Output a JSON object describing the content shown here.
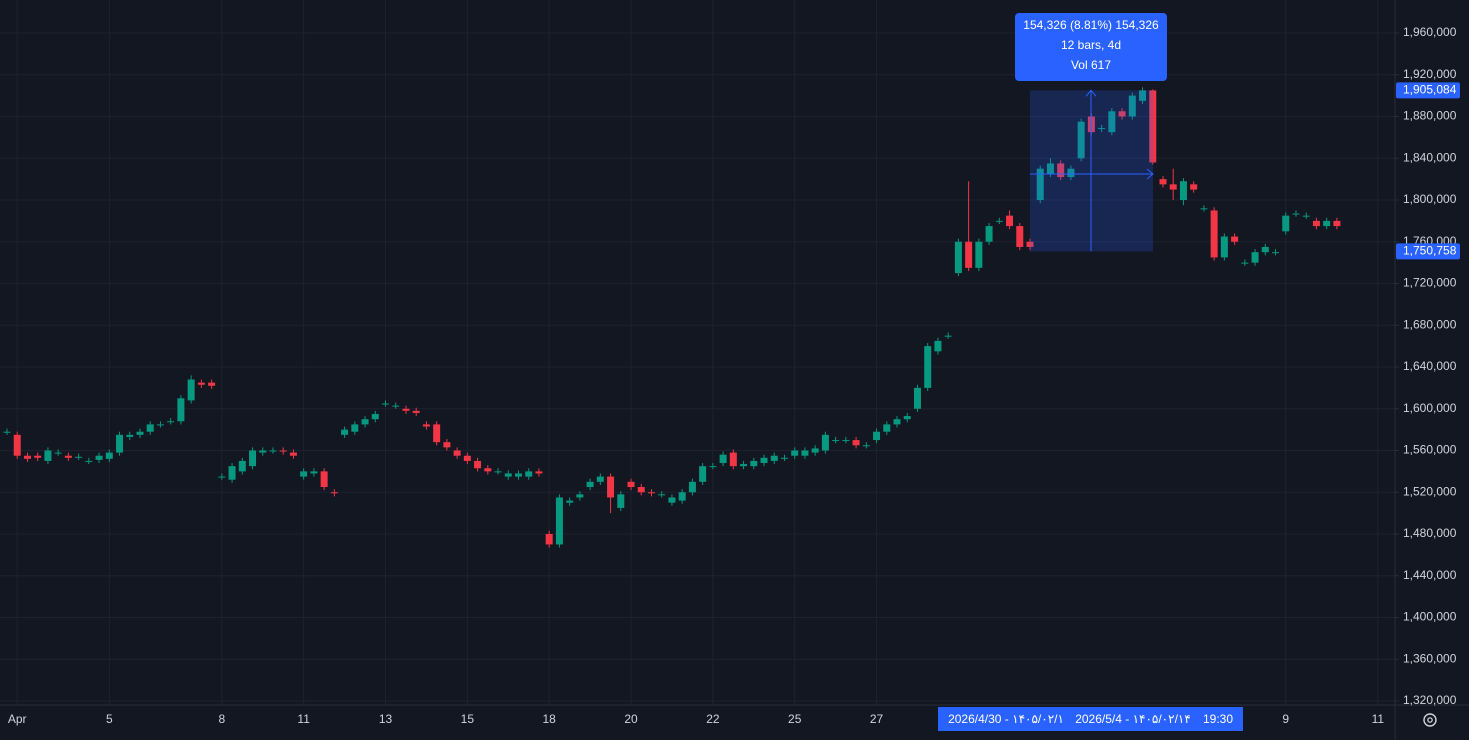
{
  "chart_data": {
    "type": "candlestick",
    "categories": [
      null,
      "Apr",
      null,
      null,
      null,
      null,
      null,
      null,
      null,
      null,
      "5",
      null,
      null,
      null,
      null,
      null,
      null,
      null,
      null,
      null,
      null,
      "8",
      null,
      null,
      null,
      null,
      null,
      null,
      null,
      "11",
      null,
      null,
      null,
      null,
      null,
      null,
      null,
      "13",
      null,
      null,
      null,
      null,
      null,
      null,
      null,
      "15",
      null,
      null,
      null,
      null,
      null,
      null,
      null,
      "18",
      null,
      null,
      null,
      null,
      null,
      null,
      null,
      "20",
      null,
      null,
      null,
      null,
      null,
      null,
      null,
      "22",
      null,
      null,
      null,
      null,
      null,
      null,
      null,
      "25",
      null,
      null,
      null,
      null,
      null,
      null,
      null,
      "27",
      null,
      null,
      null,
      null,
      null,
      null,
      null,
      null,
      null,
      null,
      null,
      null,
      null,
      null,
      null,
      null,
      null,
      null,
      null,
      null,
      null,
      null,
      null,
      null,
      null,
      null,
      null,
      null,
      null,
      null,
      null,
      null,
      null,
      null,
      null,
      null,
      null,
      null,
      null,
      "9",
      null,
      null,
      null,
      null,
      null,
      null,
      null,
      null,
      "11"
    ],
    "open": [
      1578000,
      1575000,
      1555000,
      1555000,
      1550000,
      1558000,
      1555000,
      1554000,
      1550000,
      1551000,
      1552000,
      1558000,
      1573000,
      1575000,
      1578000,
      1585000,
      1588000,
      1588000,
      1608000,
      1625000,
      1625000,
      1535000,
      1532000,
      1540000,
      1545000,
      1558000,
      1560000,
      1560000,
      1558000,
      1535000,
      1538000,
      1540000,
      1520000,
      1575000,
      1578000,
      1585000,
      1590000,
      1605000,
      1603000,
      1600000,
      1598000,
      1585000,
      1585000,
      1568000,
      1560000,
      1555000,
      1550000,
      1543000,
      1540000,
      1535000,
      1535000,
      1535000,
      1540000,
      1480000,
      1470000,
      1510000,
      1515000,
      1525000,
      1530000,
      1535000,
      1505000,
      1530000,
      1525000,
      1520000,
      1518000,
      1510000,
      1512000,
      1520000,
      1530000,
      1545000,
      1548000,
      1558000,
      1545000,
      1545000,
      1548000,
      1550000,
      1553000,
      1555000,
      1555000,
      1558000,
      1560000,
      1570000,
      1570000,
      1570000,
      1565000,
      1570000,
      1578000,
      1585000,
      1590000,
      1600000,
      1620000,
      1655000,
      1670000,
      1730000,
      1760000,
      1735000,
      1760000,
      1780000,
      1785000,
      1775000,
      1760000,
      1800000,
      1825000,
      1835000,
      1822000,
      1840000,
      1880000,
      1868000,
      1865000,
      1885000,
      1880000,
      1895000,
      1905000,
      1820000,
      1815000,
      1800000,
      1815000,
      1792000,
      1790000,
      1745000,
      1765000,
      1740000,
      1740000,
      1750000,
      1750000,
      1770000,
      1787000,
      1785000,
      1780000,
      1775000,
      1780000,
      null,
      null,
      null,
      null
    ],
    "high": [
      1581000,
      1578000,
      1558000,
      1558000,
      1563000,
      1561000,
      1558000,
      1557000,
      1553000,
      1558000,
      1561000,
      1578000,
      1578000,
      1581000,
      1588000,
      1588000,
      1591000,
      1613000,
      1632000,
      1628000,
      1628000,
      1538000,
      1548000,
      1553000,
      1563000,
      1563000,
      1563000,
      1563000,
      1561000,
      1543000,
      1543000,
      1543000,
      1523000,
      1583000,
      1588000,
      1593000,
      1598000,
      1608000,
      1606000,
      1603000,
      1601000,
      1588000,
      1588000,
      1571000,
      1563000,
      1558000,
      1553000,
      1546000,
      1543000,
      1541000,
      1541000,
      1543000,
      1543000,
      1483000,
      1518000,
      1515000,
      1521000,
      1533000,
      1538000,
      1538000,
      1521000,
      1533000,
      1528000,
      1523000,
      1521000,
      1518000,
      1523000,
      1533000,
      1548000,
      1548000,
      1559000,
      1561000,
      1550000,
      1553000,
      1556000,
      1558000,
      1556000,
      1563000,
      1563000,
      1565000,
      1578000,
      1573000,
      1573000,
      1573000,
      1568000,
      1581000,
      1588000,
      1593000,
      1596000,
      1623000,
      1663000,
      1668000,
      1673000,
      1763000,
      1818000,
      1763000,
      1778000,
      1783000,
      1790000,
      1778000,
      1763000,
      1833000,
      1840000,
      1838000,
      1833000,
      1878000,
      1883000,
      1872000,
      1888000,
      1888000,
      1903000,
      1908000,
      1906000,
      1823000,
      1830000,
      1821000,
      1818000,
      1795000,
      1793000,
      1768000,
      1768000,
      1743000,
      1753000,
      1758000,
      1753000,
      1788000,
      1790000,
      1788000,
      1783000,
      1783000,
      1783000,
      null,
      null,
      null,
      null
    ],
    "low": [
      1575000,
      1552000,
      1549000,
      1550000,
      1547000,
      1555000,
      1550000,
      1551000,
      1547000,
      1548000,
      1549000,
      1555000,
      1570000,
      1572000,
      1575000,
      1582000,
      1585000,
      1585000,
      1605000,
      1620000,
      1619000,
      1532000,
      1529000,
      1537000,
      1542000,
      1555000,
      1557000,
      1556000,
      1552000,
      1532000,
      1535000,
      1522000,
      1516000,
      1572000,
      1575000,
      1582000,
      1587000,
      1602000,
      1600000,
      1595000,
      1593000,
      1580000,
      1565000,
      1560000,
      1552000,
      1547000,
      1540000,
      1537000,
      1537000,
      1532000,
      1532000,
      1532000,
      1535000,
      1467000,
      1467000,
      1507000,
      1512000,
      1522000,
      1527000,
      1500000,
      1502000,
      1522000,
      1517000,
      1516000,
      1515000,
      1507000,
      1509000,
      1517000,
      1527000,
      1542000,
      1545000,
      1542000,
      1542000,
      1542000,
      1545000,
      1547000,
      1550000,
      1552000,
      1552000,
      1555000,
      1557000,
      1567000,
      1567000,
      1562000,
      1562000,
      1567000,
      1575000,
      1582000,
      1587000,
      1597000,
      1617000,
      1652000,
      1667000,
      1727000,
      1732000,
      1732000,
      1757000,
      1777000,
      1772000,
      1752000,
      1752000,
      1797000,
      1822000,
      1819000,
      1819000,
      1837000,
      1862000,
      1865000,
      1862000,
      1877000,
      1877000,
      1892000,
      1834000,
      1812000,
      1800000,
      1795000,
      1807000,
      1789000,
      1742000,
      1742000,
      1757000,
      1737000,
      1737000,
      1747000,
      1747000,
      1767000,
      1784000,
      1782000,
      1772000,
      1772000,
      1772000,
      null,
      null,
      null,
      null
    ],
    "close": [
      1578000,
      1555000,
      1552000,
      1553000,
      1560000,
      1558000,
      1553000,
      1554000,
      1550000,
      1555000,
      1558000,
      1575000,
      1575000,
      1578000,
      1585000,
      1585000,
      1588000,
      1610000,
      1628000,
      1623000,
      1622000,
      1535000,
      1545000,
      1550000,
      1560000,
      1560000,
      1560000,
      1559000,
      1555000,
      1540000,
      1540000,
      1525000,
      1519000,
      1580000,
      1585000,
      1590000,
      1595000,
      1605000,
      1603000,
      1598000,
      1596000,
      1583000,
      1568000,
      1563000,
      1555000,
      1550000,
      1543000,
      1540000,
      1540000,
      1538000,
      1538000,
      1540000,
      1538000,
      1470000,
      1515000,
      1512000,
      1518000,
      1530000,
      1535000,
      1515000,
      1518000,
      1525000,
      1520000,
      1519000,
      1518000,
      1515000,
      1520000,
      1530000,
      1545000,
      1545000,
      1556000,
      1545000,
      1547000,
      1550000,
      1553000,
      1555000,
      1553000,
      1560000,
      1560000,
      1562000,
      1575000,
      1570000,
      1570000,
      1565000,
      1565000,
      1578000,
      1585000,
      1590000,
      1593000,
      1620000,
      1660000,
      1665000,
      1670000,
      1760000,
      1735000,
      1760000,
      1775000,
      1780000,
      1775000,
      1755000,
      1755000,
      1830000,
      1835000,
      1822000,
      1830000,
      1875000,
      1865000,
      1869000,
      1885000,
      1880000,
      1900000,
      1905000,
      1836000,
      1815000,
      1810000,
      1818000,
      1810000,
      1792000,
      1745000,
      1765000,
      1760000,
      1740000,
      1750000,
      1755000,
      1750000,
      1785000,
      1787000,
      1785000,
      1775000,
      1780000,
      1775000,
      null,
      null,
      null,
      null
    ],
    "up_color": "#089981",
    "down_color": "#f23645",
    "ylim": [
      1320000,
      1960000
    ],
    "yticks": [
      {
        "value": 1320000,
        "label": "1,320,000"
      },
      {
        "value": 1360000,
        "label": "1,360,000"
      },
      {
        "value": 1400000,
        "label": "1,400,000"
      },
      {
        "value": 1440000,
        "label": "1,440,000"
      },
      {
        "value": 1480000,
        "label": "1,480,000"
      },
      {
        "value": 1520000,
        "label": "1,520,000"
      },
      {
        "value": 1560000,
        "label": "1,560,000"
      },
      {
        "value": 1600000,
        "label": "1,600,000"
      },
      {
        "value": 1640000,
        "label": "1,640,000"
      },
      {
        "value": 1680000,
        "label": "1,680,000"
      },
      {
        "value": 1720000,
        "label": "1,720,000"
      },
      {
        "value": 1760000,
        "label": "1,760,000"
      },
      {
        "value": 1800000,
        "label": "1,800,000"
      },
      {
        "value": 1840000,
        "label": "1,840,000"
      },
      {
        "value": 1880000,
        "label": "1,880,000"
      },
      {
        "value": 1920000,
        "label": "1,920,000"
      },
      {
        "value": 1960000,
        "label": "1,960,000"
      }
    ],
    "grid": true,
    "price_labels": [
      {
        "value": 1905084,
        "label": "1,905,084"
      },
      {
        "value": 1750758,
        "label": "1,750,758"
      }
    ],
    "annotations": [
      "154,326 (8.81%) 154,326",
      "12 bars, 4d",
      "Vol 617"
    ],
    "crosshair_labels": [
      "2026/4/30 - ۱۴۰۵/۰۲/۱",
      "2026/5/4 - ۱۴۰۵/۰۲/۱۴",
      "19:30"
    ]
  }
}
